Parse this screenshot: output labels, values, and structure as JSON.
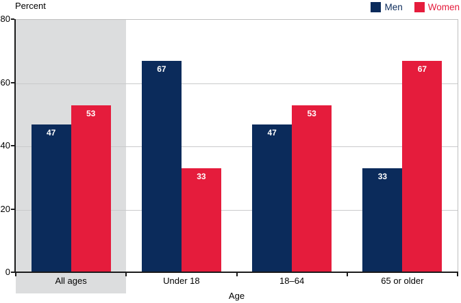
{
  "chart_data": {
    "type": "bar",
    "title": "",
    "ylabel": "Percent",
    "xlabel": "Age",
    "categories": [
      "All ages",
      "Under 18",
      "18–64",
      "65 or older"
    ],
    "series": [
      {
        "name": "Men",
        "color": "#0B2B5B",
        "values": [
          47,
          67,
          47,
          33
        ]
      },
      {
        "name": "Women",
        "color": "#E51C3C",
        "values": [
          53,
          33,
          53,
          67
        ]
      }
    ],
    "ylim": [
      0,
      80
    ],
    "yticks": [
      0,
      20,
      40,
      60,
      80
    ],
    "gridlines_at": [
      20,
      40,
      60
    ],
    "grid": true,
    "legend_position": "top-right",
    "value_labels_shown": true,
    "highlighted_category": "All ages",
    "highlight_color": "#DCDDDE"
  },
  "colors": {
    "background": "#FFFFFF",
    "axis": "#1A1A1A",
    "gridline": "#C9CACB",
    "plot_border": "#BFBFBF",
    "bar_label_text": "#FFFFFF",
    "text": "#000000"
  }
}
